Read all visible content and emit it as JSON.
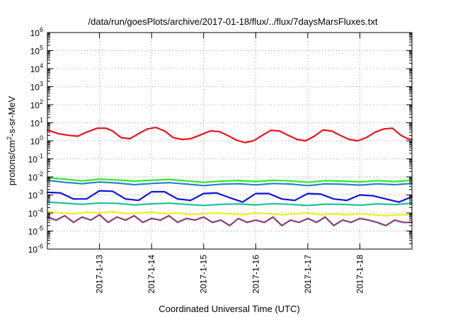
{
  "chart_data": {
    "type": "line",
    "title": "/data/run/goesPlots/archive/2017-01-18/flux/../flux/7daysMarsFluxes.txt",
    "xlabel": "Coordinated Universal Time (UTC)",
    "ylabel": {
      "base": "protons/cm",
      "sup": "2",
      "rest": "-s-sr-MeV"
    },
    "y_scale": "log",
    "ylim_exp": [
      -6,
      6
    ],
    "xlim": [
      "2017-01-12T00:00",
      "2017-01-19T00:00"
    ],
    "grid": true,
    "x_ticks": [
      "2017-1-13",
      "2017-1-14",
      "2017-1-15",
      "2017-1-16",
      "2017-1-17",
      "2017-1-18"
    ],
    "x_tick_dates": [
      "2017-01-13",
      "2017-01-14",
      "2017-01-15",
      "2017-01-16",
      "2017-01-17",
      "2017-01-18"
    ],
    "y_ticks": [
      {
        "base": "10",
        "exp": "6"
      },
      {
        "base": "10",
        "exp": "5"
      },
      {
        "base": "10",
        "exp": "4"
      },
      {
        "base": "10",
        "exp": "3"
      },
      {
        "base": "10",
        "exp": "2"
      },
      {
        "base": "10",
        "exp": "1"
      },
      {
        "base": "10",
        "exp": "0"
      },
      {
        "base": "10",
        "exp": "-1"
      },
      {
        "base": "10",
        "exp": "-2"
      },
      {
        "base": "10",
        "exp": "-3"
      },
      {
        "base": "10",
        "exp": "-4"
      },
      {
        "base": "10",
        "exp": "-5"
      },
      {
        "base": "10",
        "exp": "-6"
      }
    ],
    "series": [
      {
        "color": "#e8141b",
        "x": [
          "2017-01-12T00:00",
          "2017-01-12T05:00",
          "2017-01-12T10:00",
          "2017-01-12T14:00",
          "2017-01-12T18:00",
          "2017-01-12T23:00",
          "2017-01-13T03:00",
          "2017-01-13T06:00",
          "2017-01-13T10:00",
          "2017-01-13T14:00",
          "2017-01-13T18:00",
          "2017-01-13T22:00",
          "2017-01-14T02:00",
          "2017-01-14T06:00",
          "2017-01-14T10:00",
          "2017-01-14T14:00",
          "2017-01-14T18:00",
          "2017-01-14T22:00",
          "2017-01-15T03:00",
          "2017-01-15T07:00",
          "2017-01-15T11:00",
          "2017-01-15T15:00",
          "2017-01-15T19:00",
          "2017-01-15T23:00",
          "2017-01-16T03:00",
          "2017-01-16T07:00",
          "2017-01-16T11:00",
          "2017-01-16T15:00",
          "2017-01-16T19:00",
          "2017-01-16T23:00",
          "2017-01-17T03:00",
          "2017-01-17T07:00",
          "2017-01-17T11:00",
          "2017-01-17T15:00",
          "2017-01-17T19:00",
          "2017-01-17T23:00",
          "2017-01-18T03:00",
          "2017-01-18T07:00",
          "2017-01-18T11:00",
          "2017-01-18T15:00",
          "2017-01-18T19:00",
          "2017-01-18T22:00",
          "2017-01-19T00:00"
        ],
        "y": [
          4.0,
          2.5,
          2.0,
          1.8,
          3.0,
          5.0,
          5.0,
          3.5,
          1.5,
          1.3,
          2.5,
          4.5,
          5.5,
          3.5,
          1.5,
          1.2,
          1.3,
          2.0,
          3.5,
          3.3,
          2.0,
          1.1,
          0.8,
          1.0,
          2.0,
          3.8,
          3.5,
          2.0,
          1.2,
          1.0,
          1.8,
          4.0,
          3.5,
          2.0,
          1.2,
          1.0,
          1.5,
          3.0,
          4.5,
          5.0,
          2.0,
          1.3,
          1.2
        ]
      },
      {
        "color": "#22ee22",
        "x": [
          "2017-01-12T00:00",
          "2017-01-12T08:00",
          "2017-01-12T16:00",
          "2017-01-13T00:00",
          "2017-01-13T08:00",
          "2017-01-13T16:00",
          "2017-01-14T00:00",
          "2017-01-14T08:00",
          "2017-01-14T16:00",
          "2017-01-15T00:00",
          "2017-01-15T08:00",
          "2017-01-15T16:00",
          "2017-01-16T00:00",
          "2017-01-16T08:00",
          "2017-01-16T16:00",
          "2017-01-17T00:00",
          "2017-01-17T08:00",
          "2017-01-17T16:00",
          "2017-01-18T00:00",
          "2017-01-18T08:00",
          "2017-01-18T16:00",
          "2017-01-19T00:00"
        ],
        "y": [
          0.009,
          0.0075,
          0.006,
          0.0075,
          0.0068,
          0.0058,
          0.0065,
          0.0072,
          0.006,
          0.005,
          0.0058,
          0.0063,
          0.0055,
          0.0065,
          0.006,
          0.005,
          0.0062,
          0.0058,
          0.0052,
          0.0062,
          0.0055,
          0.0065
        ]
      },
      {
        "color": "#2f7fd0",
        "x": [
          "2017-01-12T00:00",
          "2017-01-12T08:00",
          "2017-01-12T16:00",
          "2017-01-13T00:00",
          "2017-01-13T08:00",
          "2017-01-13T16:00",
          "2017-01-14T00:00",
          "2017-01-14T08:00",
          "2017-01-14T16:00",
          "2017-01-15T00:00",
          "2017-01-15T08:00",
          "2017-01-15T16:00",
          "2017-01-16T00:00",
          "2017-01-16T08:00",
          "2017-01-16T16:00",
          "2017-01-17T00:00",
          "2017-01-17T08:00",
          "2017-01-17T16:00",
          "2017-01-18T00:00",
          "2017-01-18T08:00",
          "2017-01-18T16:00",
          "2017-01-19T00:00"
        ],
        "y": [
          0.0065,
          0.005,
          0.0042,
          0.0052,
          0.0046,
          0.0037,
          0.0043,
          0.0048,
          0.004,
          0.0033,
          0.0039,
          0.0042,
          0.0036,
          0.0043,
          0.004,
          0.0033,
          0.0041,
          0.0039,
          0.0035,
          0.0041,
          0.0037,
          0.0043
        ]
      },
      {
        "color": "#1010e0",
        "x": [
          "2017-01-12T00:00",
          "2017-01-12T06:00",
          "2017-01-12T12:00",
          "2017-01-12T18:00",
          "2017-01-13T00:00",
          "2017-01-13T06:00",
          "2017-01-13T12:00",
          "2017-01-13T18:00",
          "2017-01-14T00:00",
          "2017-01-14T06:00",
          "2017-01-14T12:00",
          "2017-01-14T18:00",
          "2017-01-15T00:00",
          "2017-01-15T06:00",
          "2017-01-15T12:00",
          "2017-01-15T18:00",
          "2017-01-16T00:00",
          "2017-01-16T06:00",
          "2017-01-16T12:00",
          "2017-01-16T18:00",
          "2017-01-17T00:00",
          "2017-01-17T06:00",
          "2017-01-17T12:00",
          "2017-01-17T18:00",
          "2017-01-18T00:00",
          "2017-01-18T06:00",
          "2017-01-18T12:00",
          "2017-01-18T18:00",
          "2017-01-19T00:00"
        ],
        "y": [
          0.0014,
          0.0013,
          0.0006,
          0.0006,
          0.0017,
          0.0016,
          0.0006,
          0.0005,
          0.0015,
          0.0015,
          0.0006,
          0.0005,
          0.0012,
          0.0013,
          0.0007,
          0.0004,
          0.0012,
          0.0012,
          0.0006,
          0.0005,
          0.0012,
          0.0011,
          0.0006,
          0.0005,
          0.001,
          0.0009,
          0.0006,
          0.0004,
          0.0008
        ]
      },
      {
        "color": "#20c0a0",
        "x": [
          "2017-01-12T00:00",
          "2017-01-12T08:00",
          "2017-01-12T16:00",
          "2017-01-13T00:00",
          "2017-01-13T08:00",
          "2017-01-13T16:00",
          "2017-01-14T00:00",
          "2017-01-14T08:00",
          "2017-01-14T16:00",
          "2017-01-15T00:00",
          "2017-01-15T08:00",
          "2017-01-15T16:00",
          "2017-01-16T00:00",
          "2017-01-16T08:00",
          "2017-01-16T16:00",
          "2017-01-17T00:00",
          "2017-01-17T08:00",
          "2017-01-17T16:00",
          "2017-01-18T00:00",
          "2017-01-18T08:00",
          "2017-01-18T16:00",
          "2017-01-19T00:00"
        ],
        "y": [
          0.0004,
          0.00035,
          0.0003,
          0.00036,
          0.00034,
          0.00028,
          0.00032,
          0.00035,
          0.0003,
          0.00026,
          0.0003,
          0.00032,
          0.00028,
          0.00033,
          0.0003,
          0.00026,
          0.00031,
          0.0003,
          0.00027,
          0.00032,
          0.00029,
          0.00035
        ]
      },
      {
        "color": "#f0f020",
        "x": [
          "2017-01-12T00:00",
          "2017-01-12T06:00",
          "2017-01-12T12:00",
          "2017-01-12T18:00",
          "2017-01-13T00:00",
          "2017-01-13T06:00",
          "2017-01-13T12:00",
          "2017-01-13T18:00",
          "2017-01-14T00:00",
          "2017-01-14T06:00",
          "2017-01-14T12:00",
          "2017-01-14T18:00",
          "2017-01-15T00:00",
          "2017-01-15T06:00",
          "2017-01-15T12:00",
          "2017-01-15T18:00",
          "2017-01-16T00:00",
          "2017-01-16T06:00",
          "2017-01-16T12:00",
          "2017-01-16T18:00",
          "2017-01-17T00:00",
          "2017-01-17T06:00",
          "2017-01-17T12:00",
          "2017-01-17T18:00",
          "2017-01-18T00:00",
          "2017-01-18T06:00",
          "2017-01-18T12:00",
          "2017-01-18T18:00",
          "2017-01-19T00:00"
        ],
        "y": [
          0.00012,
          0.0001,
          9e-05,
          0.00011,
          0.0001,
          0.00012,
          9e-05,
          0.0001,
          0.00011,
          9e-05,
          0.0001,
          8e-05,
          9e-05,
          0.0001,
          9e-05,
          8e-05,
          0.0001,
          9e-05,
          8e-05,
          9e-05,
          0.0001,
          8e-05,
          9e-05,
          8e-05,
          9e-05,
          8e-05,
          7e-05,
          8e-05,
          8e-05
        ]
      },
      {
        "color": "#8b3a7c",
        "x": [
          "2017-01-12T00:00",
          "2017-01-12T04:00",
          "2017-01-12T08:00",
          "2017-01-12T12:00",
          "2017-01-12T16:00",
          "2017-01-12T20:00",
          "2017-01-13T00:00",
          "2017-01-13T04:00",
          "2017-01-13T08:00",
          "2017-01-13T12:00",
          "2017-01-13T16:00",
          "2017-01-13T20:00",
          "2017-01-14T00:00",
          "2017-01-14T04:00",
          "2017-01-14T08:00",
          "2017-01-14T12:00",
          "2017-01-14T16:00",
          "2017-01-14T20:00",
          "2017-01-15T00:00",
          "2017-01-15T04:00",
          "2017-01-15T08:00",
          "2017-01-15T12:00",
          "2017-01-15T16:00",
          "2017-01-15T20:00",
          "2017-01-16T00:00",
          "2017-01-16T04:00",
          "2017-01-16T08:00",
          "2017-01-16T12:00",
          "2017-01-16T16:00",
          "2017-01-16T20:00",
          "2017-01-17T00:00",
          "2017-01-17T04:00",
          "2017-01-17T08:00",
          "2017-01-17T12:00",
          "2017-01-17T16:00",
          "2017-01-17T20:00",
          "2017-01-18T00:00",
          "2017-01-18T04:00",
          "2017-01-18T08:00",
          "2017-01-18T12:00",
          "2017-01-18T16:00",
          "2017-01-18T20:00",
          "2017-01-19T00:00"
        ],
        "y": [
          6e-05,
          4e-05,
          7e-05,
          3e-05,
          6e-05,
          4e-05,
          8e-05,
          3e-05,
          6e-05,
          4e-05,
          7e-05,
          3e-05,
          5e-05,
          4e-05,
          7e-05,
          3e-05,
          5e-05,
          4e-05,
          6e-05,
          3e-05,
          4e-05,
          2e-05,
          5e-05,
          3e-05,
          4e-05,
          3e-05,
          6e-05,
          2e-05,
          4e-05,
          3e-05,
          5e-05,
          3e-05,
          6e-05,
          2e-05,
          4e-05,
          3e-05,
          5e-05,
          4e-05,
          3e-05,
          2e-05,
          4e-05,
          3e-05,
          3e-05
        ]
      }
    ]
  }
}
